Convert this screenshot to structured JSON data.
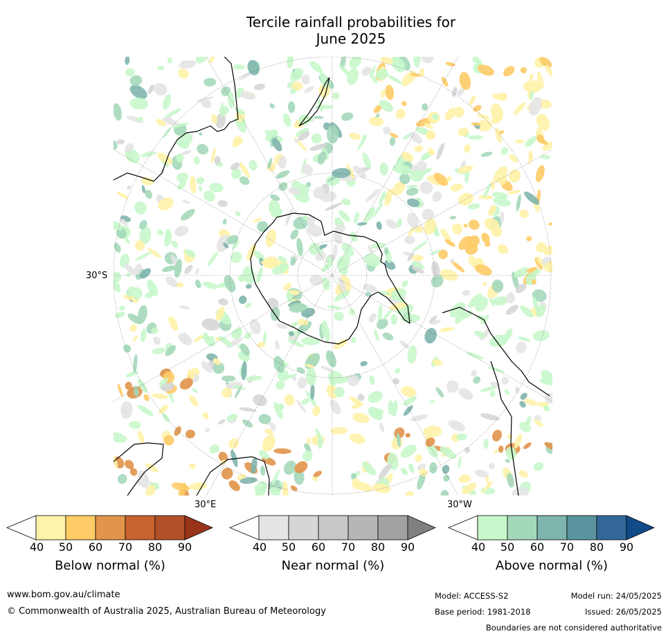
{
  "title": {
    "line1": "Tercile rainfall probabilities for",
    "line2": "June 2025"
  },
  "map": {
    "projection": "south polar stereographic",
    "lat_labels": [
      "30°S",
      "30°E",
      "30°W"
    ],
    "categories": {
      "below_normal": [
        "#fff2aa",
        "#fecb66",
        "#e1944a",
        "#c8622e",
        "#b2502a",
        "#9a3419"
      ],
      "near_normal": [
        "#e4e4e4",
        "#d6d6d6",
        "#c8c8c8",
        "#b6b6b6",
        "#a2a2a2",
        "#808080"
      ],
      "above_normal": [
        "#c8f7cb",
        "#a4d8ba",
        "#7fb5ad",
        "#5a949f",
        "#336799",
        "#114b88"
      ]
    }
  },
  "legend": {
    "tick_values": [
      "40",
      "50",
      "60",
      "70",
      "80",
      "90"
    ],
    "below_title": "Below normal (%)",
    "near_title": "Near normal (%)",
    "above_title": "Above normal (%)"
  },
  "footer": {
    "url": "www.bom.gov.au/climate",
    "copyright": "© Commonwealth of Australia 2025, Australian Bureau of Meteorology",
    "model": "Model: ACCESS-S2",
    "base_period": "Base period: 1981-2018",
    "model_run": "Model run: 24/05/2025",
    "issued": "Issued: 26/05/2025",
    "disclaimer": "Boundaries are not considered authoritative"
  }
}
